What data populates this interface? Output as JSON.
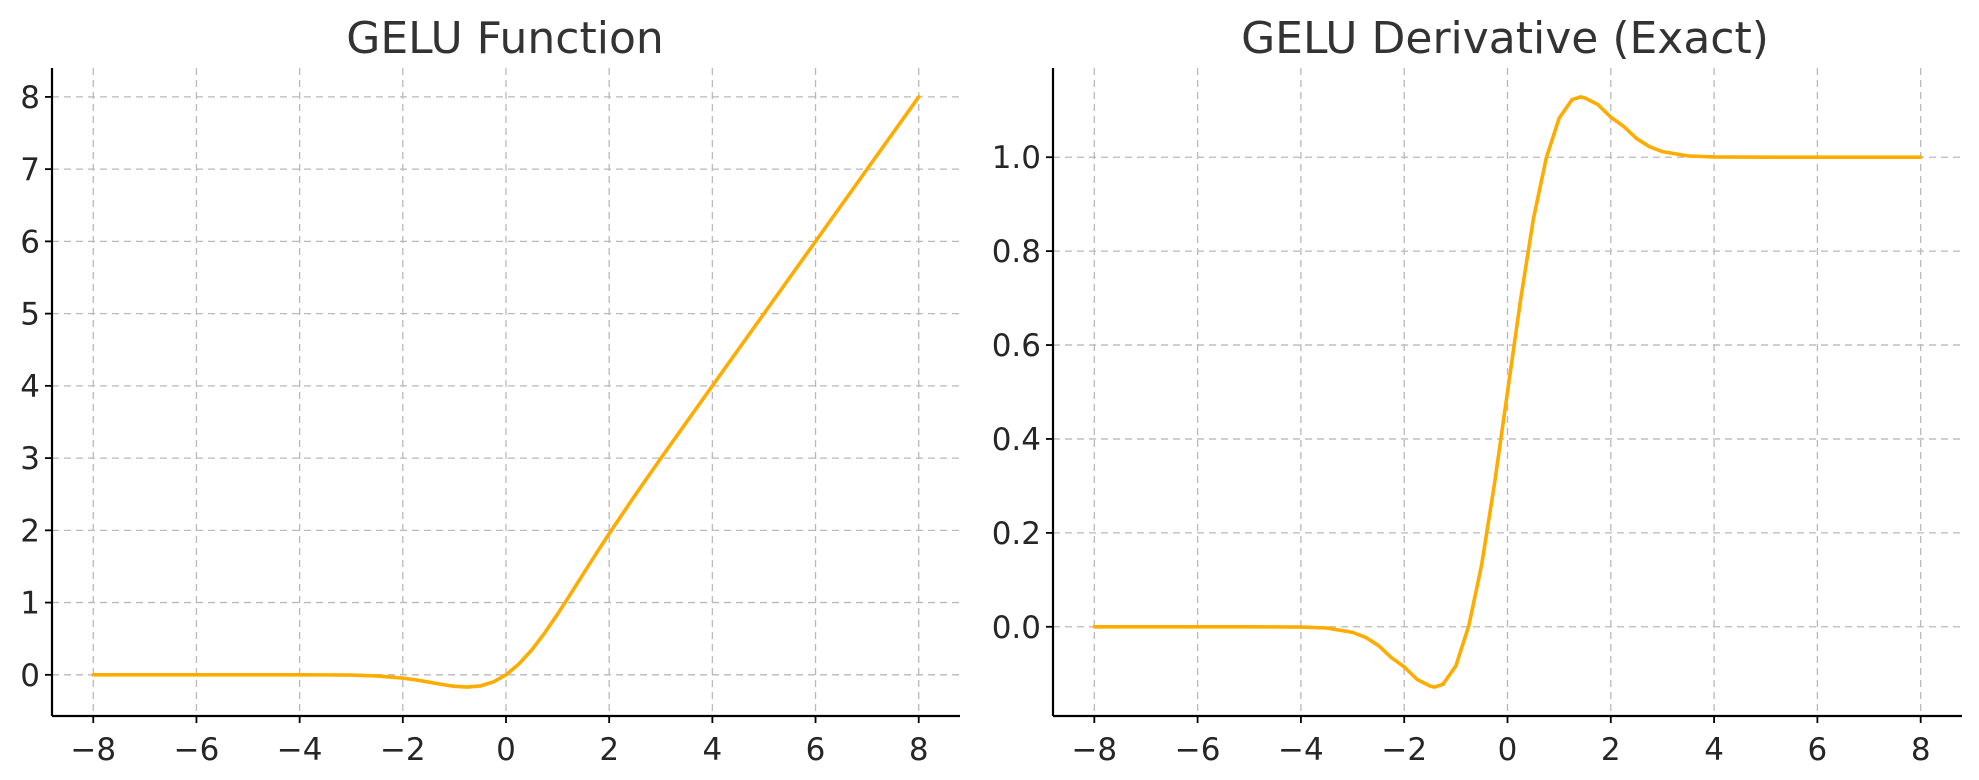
{
  "colors": {
    "series": "#ffac00",
    "grid": "#b9b9b9",
    "axis": "#000000",
    "text": "#262626"
  },
  "chart_data": [
    {
      "type": "line",
      "title": "GELU Function",
      "xlabel": "",
      "ylabel": "",
      "xlim": [
        -8.8,
        8.8
      ],
      "ylim": [
        -0.57,
        8.4
      ],
      "grid": true,
      "x_ticks": [
        -8,
        -6,
        -4,
        -2,
        0,
        2,
        4,
        6,
        8
      ],
      "x_tick_labels": [
        "−8",
        "−6",
        "−4",
        "−2",
        "0",
        "2",
        "4",
        "6",
        "8"
      ],
      "y_ticks": [
        0,
        1,
        2,
        3,
        4,
        5,
        6,
        7,
        8
      ],
      "y_tick_labels": [
        "0",
        "1",
        "2",
        "3",
        "4",
        "5",
        "6",
        "7",
        "8"
      ],
      "series": [
        {
          "x": [
            -8,
            -7,
            -6,
            -5,
            -4,
            -3.5,
            -3,
            -2.5,
            -2,
            -1.75,
            -1.5,
            -1.25,
            -1,
            -0.75,
            -0.5,
            -0.25,
            0,
            0.25,
            0.5,
            0.75,
            1,
            1.25,
            1.5,
            1.75,
            2,
            2.5,
            3,
            3.5,
            4,
            5,
            6,
            7,
            8
          ],
          "y": [
            0,
            0,
            0,
            0,
            -0.0001,
            -0.0008,
            -0.004,
            -0.0155,
            -0.0455,
            -0.0702,
            -0.1002,
            -0.132,
            -0.1587,
            -0.17,
            -0.1543,
            -0.0998,
            0,
            0.1502,
            0.3457,
            0.58,
            0.8413,
            1.118,
            1.3998,
            1.6798,
            1.9545,
            2.4845,
            2.996,
            3.4992,
            3.9999,
            5,
            6,
            7,
            8
          ]
        }
      ]
    },
    {
      "type": "line",
      "title": "GELU Derivative (Exact)",
      "xlabel": "",
      "ylabel": "",
      "xlim": [
        -8.8,
        8.8
      ],
      "ylim": [
        -0.19,
        1.19
      ],
      "grid": true,
      "x_ticks": [
        -8,
        -6,
        -4,
        -2,
        0,
        2,
        4,
        6,
        8
      ],
      "x_tick_labels": [
        "−8",
        "−6",
        "−4",
        "−2",
        "0",
        "2",
        "4",
        "6",
        "8"
      ],
      "y_ticks": [
        0,
        0.2,
        0.4,
        0.6,
        0.8,
        1.0
      ],
      "y_tick_labels": [
        "0.0",
        "0.2",
        "0.4",
        "0.6",
        "0.8",
        "1.0"
      ],
      "series": [
        {
          "x": [
            -8,
            -6,
            -5,
            -4,
            -3.5,
            -3,
            -2.75,
            -2.5,
            -2.25,
            -2,
            -1.75,
            -1.5,
            -1.414,
            -1.25,
            -1,
            -0.75,
            -0.5,
            -0.25,
            0,
            0.25,
            0.5,
            0.75,
            1,
            1.25,
            1.414,
            1.5,
            1.75,
            2,
            2.25,
            2.5,
            2.75,
            3,
            3.5,
            4,
            5,
            6,
            8
          ],
          "y": [
            0,
            0,
            0,
            -0.0005,
            -0.0026,
            -0.0119,
            -0.0224,
            -0.0397,
            -0.0655,
            -0.0854,
            -0.1122,
            -0.1262,
            -0.1285,
            -0.1225,
            -0.0833,
            0.0019,
            0.1325,
            0.306,
            0.5,
            0.694,
            0.8675,
            0.9981,
            1.0833,
            1.1225,
            1.1285,
            1.1262,
            1.1122,
            1.0854,
            1.0655,
            1.0397,
            1.0224,
            1.0119,
            1.0026,
            1.0005,
            1.0,
            1.0,
            1.0
          ]
        }
      ]
    }
  ]
}
